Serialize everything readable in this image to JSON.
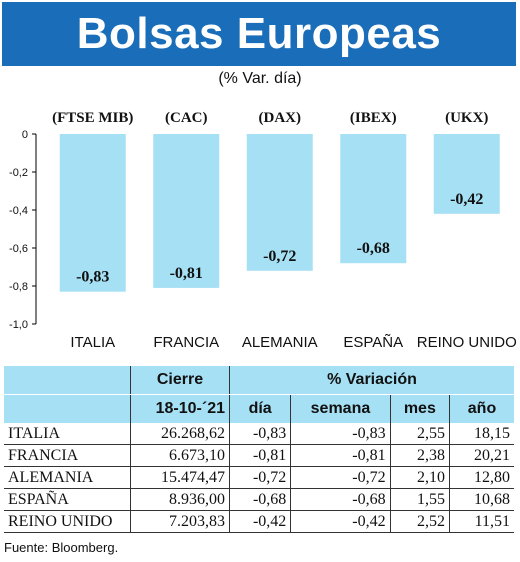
{
  "header": {
    "title": "Bolsas Europeas",
    "subtitle": "(% Var. día)"
  },
  "chart_data": {
    "type": "bar",
    "indices": [
      "(FTSE MIB)",
      "(CAC)",
      "(DAX)",
      "(IBEX)",
      "(UKX)"
    ],
    "categories": [
      "ITALIA",
      "FRANCIA",
      "ALEMANIA",
      "ESPAÑA",
      "REINO UNIDO"
    ],
    "values": [
      -0.83,
      -0.81,
      -0.72,
      -0.68,
      -0.42
    ],
    "value_labels": [
      "-0,83",
      "-0,81",
      "-0,72",
      "-0,68",
      "-0,42"
    ],
    "yticks": [
      0,
      -0.2,
      -0.4,
      -0.6,
      -0.8,
      -1.0
    ],
    "ytick_labels": [
      "0",
      "-0,2",
      "-0,4",
      "-0,6",
      "-0,8",
      "-1,0"
    ],
    "ylim": [
      -1.0,
      0
    ],
    "bar_color": "#a6e0f5"
  },
  "table": {
    "header_top": {
      "cierre": "Cierre",
      "variacion": "% Variación"
    },
    "header_sub": {
      "date": "18-10-´21",
      "dia": "día",
      "semana": "semana",
      "mes": "mes",
      "ano": "año"
    },
    "rows": [
      {
        "name": "ITALIA",
        "cierre": "26.268,62",
        "dia": "-0,83",
        "semana": "-0,83",
        "mes": "2,55",
        "ano": "18,15"
      },
      {
        "name": "FRANCIA",
        "cierre": "6.673,10",
        "dia": "-0,81",
        "semana": "-0,81",
        "mes": "2,38",
        "ano": "20,21"
      },
      {
        "name": "ALEMANIA",
        "cierre": "15.474,47",
        "dia": "-0,72",
        "semana": "-0,72",
        "mes": "2,10",
        "ano": "12,80"
      },
      {
        "name": "ESPAÑA",
        "cierre": "8.936,00",
        "dia": "-0,68",
        "semana": "-0,68",
        "mes": "1,55",
        "ano": "10,68"
      },
      {
        "name": "REINO UNIDO",
        "cierre": "7.203,83",
        "dia": "-0,42",
        "semana": "-0,42",
        "mes": "2,52",
        "ano": "11,51"
      }
    ]
  },
  "source": "Fuente: Bloomberg.",
  "colors": {
    "banner": "#1a6db8",
    "bar": "#a6e0f5",
    "header_fill": "#a6e0f5"
  }
}
